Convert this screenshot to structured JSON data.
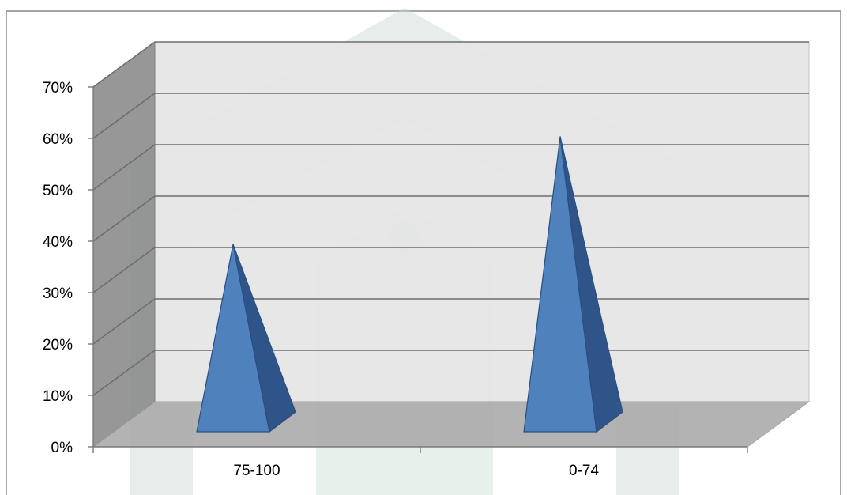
{
  "chart_data": {
    "type": "bar",
    "style": "3d-pyramid",
    "categories": [
      "75-100",
      "0-74"
    ],
    "values": [
      42,
      63
    ],
    "title": "",
    "xlabel": "",
    "ylabel": "",
    "ylim": [
      0,
      70
    ],
    "yticks": [
      "0%",
      "10%",
      "20%",
      "30%",
      "40%",
      "50%",
      "60%",
      "70%"
    ],
    "grid": true,
    "legend": "none",
    "colors": {
      "bar_front": "#4f81bd",
      "bar_side": "#2f5489",
      "bar_outline": "#2a4f7f",
      "back_wall": "#e6e6e6",
      "side_wall": "#8c8c8c",
      "floor": "#a9a9a9",
      "grid": "#6e6e6e",
      "frame": "#888888"
    }
  }
}
